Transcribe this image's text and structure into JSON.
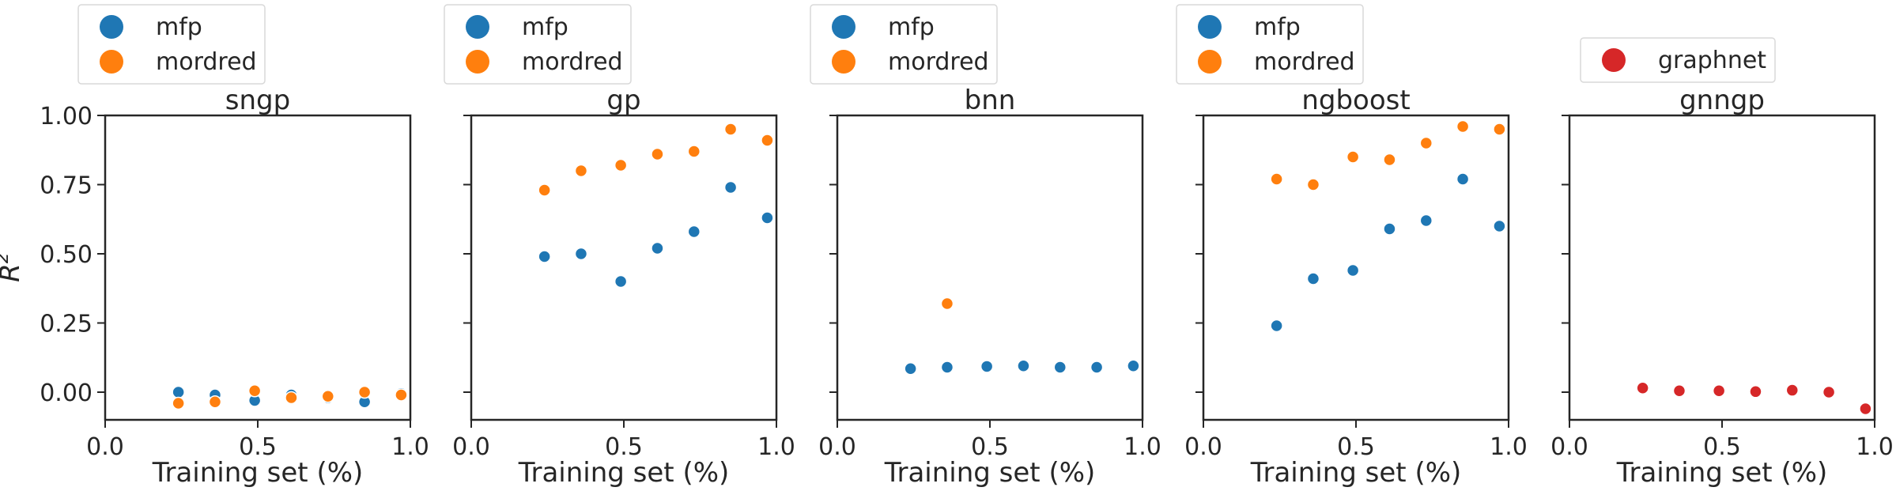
{
  "figure": {
    "ylabel": "R",
    "ylabel_sup": "2"
  },
  "colors": {
    "mfp": "#1f77b4",
    "mordred": "#ff7f0e",
    "graphnet": "#d62728"
  },
  "chart_data": [
    {
      "type": "scatter",
      "title": "sngp",
      "xlabel": "Training set (%)",
      "xlim": [
        0,
        1
      ],
      "ylim": [
        -0.1,
        1.0
      ],
      "xticks": [
        "0.0",
        "0.5",
        "1.0"
      ],
      "yticks": [
        "0.00",
        "0.25",
        "0.50",
        "0.75",
        "1.00"
      ],
      "legend_position": "above",
      "series": [
        {
          "name": "mfp",
          "color": "#1f77b4",
          "x": [
            0.24,
            0.36,
            0.49,
            0.61,
            0.73,
            0.85,
            0.97
          ],
          "y": [
            0.0,
            -0.01,
            -0.03,
            -0.01,
            -0.02,
            -0.035,
            -0.005
          ]
        },
        {
          "name": "mordred",
          "color": "#ff7f0e",
          "x": [
            0.24,
            0.36,
            0.49,
            0.61,
            0.73,
            0.85,
            0.97
          ],
          "y": [
            -0.04,
            -0.035,
            0.005,
            -0.02,
            -0.015,
            0.0,
            -0.01
          ]
        }
      ]
    },
    {
      "type": "scatter",
      "title": "gp",
      "xlabel": "Training set (%)",
      "xlim": [
        0,
        1
      ],
      "ylim": [
        -0.1,
        1.0
      ],
      "xticks": [
        "0.0",
        "0.5",
        "1.0"
      ],
      "yticks": [],
      "legend_position": "above",
      "series": [
        {
          "name": "mfp",
          "color": "#1f77b4",
          "x": [
            0.24,
            0.36,
            0.49,
            0.61,
            0.73,
            0.85,
            0.97
          ],
          "y": [
            0.49,
            0.5,
            0.4,
            0.52,
            0.58,
            0.74,
            0.63
          ]
        },
        {
          "name": "mordred",
          "color": "#ff7f0e",
          "x": [
            0.24,
            0.36,
            0.49,
            0.61,
            0.73,
            0.85,
            0.97
          ],
          "y": [
            0.73,
            0.8,
            0.82,
            0.86,
            0.87,
            0.95,
            0.91
          ]
        }
      ]
    },
    {
      "type": "scatter",
      "title": "bnn",
      "xlabel": "Training set (%)",
      "xlim": [
        0,
        1
      ],
      "ylim": [
        -0.1,
        1.0
      ],
      "xticks": [
        "0.0",
        "0.5",
        "1.0"
      ],
      "yticks": [],
      "legend_position": "above",
      "series": [
        {
          "name": "mfp",
          "color": "#1f77b4",
          "x": [
            0.24,
            0.36,
            0.49,
            0.61,
            0.73,
            0.85,
            0.97
          ],
          "y": [
            0.085,
            0.09,
            0.093,
            0.095,
            0.09,
            0.09,
            0.095
          ]
        },
        {
          "name": "mordred",
          "color": "#ff7f0e",
          "x": [
            0.36
          ],
          "y": [
            0.32
          ]
        }
      ]
    },
    {
      "type": "scatter",
      "title": "ngboost",
      "xlabel": "Training set (%)",
      "xlim": [
        0,
        1
      ],
      "ylim": [
        -0.1,
        1.0
      ],
      "xticks": [
        "0.0",
        "0.5",
        "1.0"
      ],
      "yticks": [],
      "legend_position": "above",
      "series": [
        {
          "name": "mfp",
          "color": "#1f77b4",
          "x": [
            0.24,
            0.36,
            0.49,
            0.61,
            0.73,
            0.85,
            0.97
          ],
          "y": [
            0.24,
            0.41,
            0.44,
            0.59,
            0.62,
            0.77,
            0.6
          ]
        },
        {
          "name": "mordred",
          "color": "#ff7f0e",
          "x": [
            0.24,
            0.36,
            0.49,
            0.61,
            0.73,
            0.85,
            0.97
          ],
          "y": [
            0.77,
            0.75,
            0.85,
            0.84,
            0.9,
            0.96,
            0.95
          ]
        }
      ]
    },
    {
      "type": "scatter",
      "title": "gnngp",
      "xlabel": "Training set (%)",
      "xlim": [
        0,
        1
      ],
      "ylim": [
        -0.1,
        1.0
      ],
      "xticks": [
        "0.0",
        "0.5",
        "1.0"
      ],
      "yticks": [],
      "legend_position": "above",
      "series": [
        {
          "name": "graphnet",
          "color": "#d62728",
          "x": [
            0.24,
            0.36,
            0.49,
            0.61,
            0.73,
            0.85,
            0.97
          ],
          "y": [
            0.015,
            0.005,
            0.005,
            0.002,
            0.007,
            0.0,
            -0.06
          ]
        }
      ]
    }
  ]
}
